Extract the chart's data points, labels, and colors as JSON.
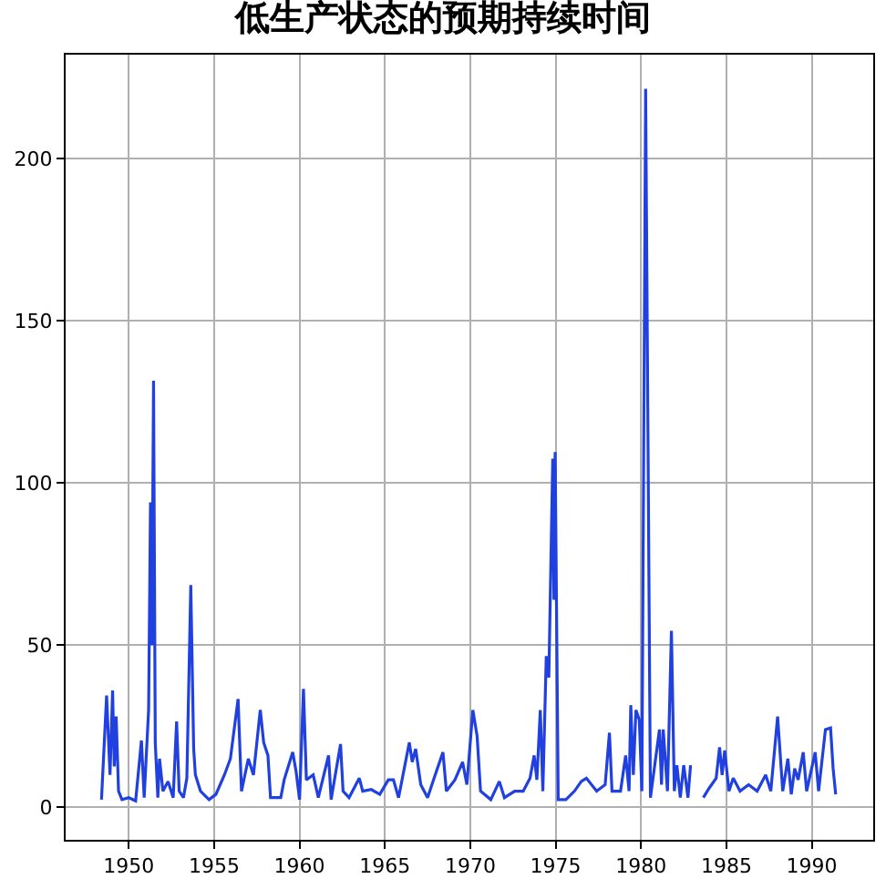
{
  "chart_data": {
    "type": "line",
    "title": "低生产状态的预期持续时间",
    "x": [
      1948.4,
      1948.7,
      1948.9,
      1949.05,
      1949.15,
      1949.26,
      1949.4,
      1949.6,
      1950.0,
      1950.4,
      1950.74,
      1950.9,
      1951.16,
      1951.27,
      1951.35,
      1951.45,
      1951.55,
      1951.7,
      1951.8,
      1952.0,
      1952.3,
      1952.6,
      1952.8,
      1952.95,
      1953.2,
      1953.4,
      1953.63,
      1953.8,
      1953.9,
      1954.2,
      1954.7,
      1955.1,
      1955.6,
      1955.95,
      1956.4,
      1956.6,
      1957.0,
      1957.3,
      1957.7,
      1957.9,
      1958.15,
      1958.3,
      1958.9,
      1959.1,
      1959.6,
      1959.8,
      1960.0,
      1960.23,
      1960.4,
      1960.8,
      1961.1,
      1961.7,
      1961.85,
      1962.4,
      1962.55,
      1962.9,
      1963.5,
      1963.7,
      1964.2,
      1964.7,
      1965.2,
      1965.5,
      1965.8,
      1966.43,
      1966.6,
      1966.8,
      1967.1,
      1967.5,
      1967.85,
      1968.4,
      1968.6,
      1969.1,
      1969.55,
      1969.8,
      1970.15,
      1970.4,
      1970.6,
      1971.2,
      1971.7,
      1972.0,
      1972.6,
      1973.1,
      1973.5,
      1973.74,
      1973.9,
      1974.1,
      1974.25,
      1974.45,
      1974.6,
      1974.83,
      1974.9,
      1974.97,
      1975.15,
      1975.6,
      1976.1,
      1976.5,
      1976.8,
      1977.4,
      1977.9,
      1978.15,
      1978.3,
      1978.8,
      1979.1,
      1979.3,
      1979.4,
      1979.55,
      1979.7,
      1979.9,
      1980.05,
      1980.27,
      1980.55,
      1981.08,
      1981.2,
      1981.3,
      1981.55,
      1981.78,
      1981.95,
      1982.1,
      1982.3,
      1982.5,
      1982.75,
      1982.9,
      1983.3,
      1983.65,
      1984.0,
      1984.4,
      1984.6,
      1984.75,
      1984.9,
      1985.15,
      1985.4,
      1985.8,
      1986.3,
      1986.8,
      1987.3,
      1987.6,
      1988.0,
      1988.3,
      1988.6,
      1988.8,
      1989.0,
      1989.2,
      1989.5,
      1989.7,
      1990.2,
      1990.4,
      1990.8,
      1991.1,
      1991.25,
      1991.4
    ],
    "series": [
      {
        "color": "#2040e0",
        "values": [
          2.4,
          34.5,
          10,
          36,
          12.6,
          28,
          5,
          2.4,
          3,
          2,
          20.6,
          3,
          30,
          94,
          50,
          131.5,
          20,
          3,
          15,
          5,
          8,
          3,
          26.5,
          5,
          3,
          9,
          68.5,
          18,
          10,
          5,
          2.4,
          4,
          10,
          15,
          33.4,
          5,
          15,
          10,
          30,
          20,
          16,
          3,
          3,
          8.5,
          17,
          11,
          2.4,
          36.5,
          8.5,
          10,
          3,
          16,
          2.4,
          19.5,
          5,
          3,
          9,
          5,
          5.5,
          4,
          8.5,
          8.5,
          3,
          20,
          14,
          18,
          7,
          3,
          8.5,
          17,
          5,
          8.5,
          14,
          7,
          30,
          22,
          5,
          2.4,
          8,
          3,
          5,
          5,
          9,
          16,
          8.5,
          30,
          5,
          46.6,
          40,
          107.5,
          64,
          109.5,
          2.4,
          2.4,
          5,
          8,
          9,
          5,
          7,
          23,
          5,
          5,
          16,
          5,
          31.5,
          10,
          30,
          27,
          5,
          221.5,
          3,
          24,
          7,
          24,
          5,
          54.4,
          5,
          13,
          3,
          13,
          3,
          13,
          null,
          3,
          6,
          9,
          18.5,
          10,
          17.5,
          5,
          9,
          5,
          7,
          5,
          10,
          5,
          28,
          5,
          15,
          4,
          12,
          8.5,
          17,
          5,
          17,
          5,
          24,
          24.5,
          12,
          4
        ]
      }
    ],
    "xlim": [
      1946.3,
      1993.6
    ],
    "ylim": [
      -10,
      232
    ],
    "xticks": [
      1950,
      1955,
      1960,
      1965,
      1970,
      1975,
      1980,
      1985,
      1990
    ],
    "yticks": [
      0,
      50,
      100,
      150,
      200
    ],
    "grid": true,
    "line_style": "solid",
    "marker": "none"
  }
}
